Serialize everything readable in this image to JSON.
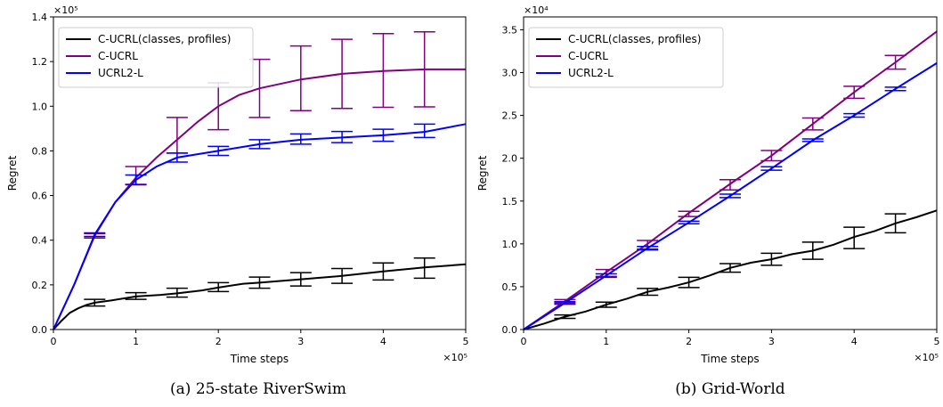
{
  "colors": {
    "c_ucrl_cp": "#000000",
    "c_ucrl": "#800080",
    "ucrl2l": "#0000ff"
  },
  "chart_data": [
    {
      "type": "line",
      "caption": "(a) 25-state RiverSwim",
      "xlabel": "Time steps",
      "ylabel": "Regret",
      "x_multiplier": "×10⁵",
      "y_multiplier": "×10⁵",
      "xlim": [
        0,
        5
      ],
      "ylim": [
        0,
        1.4
      ],
      "xticks": [
        "0",
        "1",
        "2",
        "3",
        "4",
        "5"
      ],
      "yticks": [
        "0.0",
        "0.2",
        "0.4",
        "0.6",
        "0.8",
        "1.0",
        "1.2",
        "1.4"
      ],
      "legend_position": "top-left",
      "series": [
        {
          "name": "C-UCRL(classes, profiles)",
          "color": "#000000",
          "points": [
            [
              0,
              0
            ],
            [
              0.1,
              0.04
            ],
            [
              0.2,
              0.075
            ],
            [
              0.3,
              0.095
            ],
            [
              0.4,
              0.11
            ],
            [
              0.5,
              0.12
            ],
            [
              0.7,
              0.13
            ],
            [
              1.0,
              0.148
            ],
            [
              1.3,
              0.155
            ],
            [
              1.5,
              0.162
            ],
            [
              1.8,
              0.175
            ],
            [
              2.0,
              0.188
            ],
            [
              2.3,
              0.205
            ],
            [
              2.5,
              0.21
            ],
            [
              3.0,
              0.225
            ],
            [
              3.5,
              0.24
            ],
            [
              4.0,
              0.26
            ],
            [
              4.5,
              0.278
            ],
            [
              5.0,
              0.292
            ]
          ],
          "errorbars": [
            [
              0.5,
              0.12,
              0.015
            ],
            [
              1.0,
              0.15,
              0.015
            ],
            [
              1.5,
              0.165,
              0.02
            ],
            [
              2.0,
              0.19,
              0.02
            ],
            [
              2.5,
              0.21,
              0.025
            ],
            [
              3.0,
              0.225,
              0.03
            ],
            [
              3.5,
              0.24,
              0.033
            ],
            [
              4.0,
              0.26,
              0.038
            ],
            [
              4.5,
              0.275,
              0.045
            ]
          ]
        },
        {
          "name": "C-UCRL",
          "color": "#800080",
          "points": [
            [
              0,
              0
            ],
            [
              0.25,
              0.2
            ],
            [
              0.5,
              0.42
            ],
            [
              0.75,
              0.57
            ],
            [
              1.0,
              0.68
            ],
            [
              1.25,
              0.77
            ],
            [
              1.5,
              0.85
            ],
            [
              1.75,
              0.93
            ],
            [
              2.0,
              1.0
            ],
            [
              2.25,
              1.05
            ],
            [
              2.5,
              1.08
            ],
            [
              3.0,
              1.12
            ],
            [
              3.5,
              1.145
            ],
            [
              4.0,
              1.158
            ],
            [
              4.5,
              1.165
            ],
            [
              5.0,
              1.165
            ]
          ],
          "errorbars": [
            [
              0.5,
              0.42,
              0.01
            ],
            [
              1.0,
              0.69,
              0.04
            ],
            [
              1.5,
              0.87,
              0.08
            ],
            [
              2.0,
              1.0,
              0.105
            ],
            [
              2.5,
              1.08,
              0.13
            ],
            [
              3.0,
              1.125,
              0.145
            ],
            [
              3.5,
              1.145,
              0.155
            ],
            [
              4.0,
              1.16,
              0.165
            ],
            [
              4.5,
              1.165,
              0.168
            ]
          ]
        },
        {
          "name": "UCRL2-L",
          "color": "#0000ff",
          "points": [
            [
              0,
              0
            ],
            [
              0.25,
              0.2
            ],
            [
              0.5,
              0.425
            ],
            [
              0.75,
              0.57
            ],
            [
              1.0,
              0.67
            ],
            [
              1.25,
              0.73
            ],
            [
              1.5,
              0.77
            ],
            [
              2.0,
              0.8
            ],
            [
              2.5,
              0.83
            ],
            [
              3.0,
              0.85
            ],
            [
              3.5,
              0.86
            ],
            [
              4.0,
              0.87
            ],
            [
              4.5,
              0.885
            ],
            [
              5.0,
              0.92
            ]
          ],
          "errorbars": [
            [
              0.5,
              0.425,
              0.008
            ],
            [
              1.0,
              0.67,
              0.022
            ],
            [
              1.5,
              0.77,
              0.02
            ],
            [
              2.0,
              0.8,
              0.02
            ],
            [
              2.5,
              0.83,
              0.02
            ],
            [
              3.0,
              0.853,
              0.023
            ],
            [
              3.5,
              0.862,
              0.025
            ],
            [
              4.0,
              0.87,
              0.027
            ],
            [
              4.5,
              0.89,
              0.03
            ]
          ]
        }
      ]
    },
    {
      "type": "line",
      "caption": "(b) Grid-World",
      "xlabel": "Time steps",
      "ylabel": "Regret",
      "x_multiplier": "×10⁵",
      "y_multiplier": "×10⁴",
      "xlim": [
        0,
        5
      ],
      "ylim": [
        0,
        3.65
      ],
      "xticks": [
        "0",
        "1",
        "2",
        "3",
        "4",
        "5"
      ],
      "yticks": [
        "0.0",
        "0.5",
        "1.0",
        "1.5",
        "2.0",
        "2.5",
        "3.0",
        "3.5"
      ],
      "legend_position": "top-left",
      "series": [
        {
          "name": "C-UCRL(classes, profiles)",
          "color": "#000000",
          "points": [
            [
              0,
              0
            ],
            [
              0.25,
              0.07
            ],
            [
              0.5,
              0.15
            ],
            [
              0.75,
              0.21
            ],
            [
              1.0,
              0.29
            ],
            [
              1.25,
              0.36
            ],
            [
              1.5,
              0.44
            ],
            [
              1.75,
              0.49
            ],
            [
              2.0,
              0.55
            ],
            [
              2.25,
              0.63
            ],
            [
              2.5,
              0.72
            ],
            [
              2.75,
              0.78
            ],
            [
              3.0,
              0.82
            ],
            [
              3.25,
              0.88
            ],
            [
              3.5,
              0.92
            ],
            [
              3.75,
              0.99
            ],
            [
              4.0,
              1.08
            ],
            [
              4.25,
              1.15
            ],
            [
              4.5,
              1.24
            ],
            [
              4.75,
              1.31
            ],
            [
              5.0,
              1.39
            ]
          ],
          "errorbars": [
            [
              0.5,
              0.15,
              0.02
            ],
            [
              1.0,
              0.29,
              0.03
            ],
            [
              1.5,
              0.44,
              0.04
            ],
            [
              2.0,
              0.55,
              0.06
            ],
            [
              2.5,
              0.72,
              0.05
            ],
            [
              3.0,
              0.82,
              0.07
            ],
            [
              3.5,
              0.92,
              0.1
            ],
            [
              4.0,
              1.07,
              0.125
            ],
            [
              4.5,
              1.24,
              0.11
            ]
          ]
        },
        {
          "name": "C-UCRL",
          "color": "#800080",
          "points": [
            [
              0,
              0
            ],
            [
              0.5,
              0.33
            ],
            [
              1.0,
              0.67
            ],
            [
              1.5,
              1.0
            ],
            [
              2.0,
              1.36
            ],
            [
              2.5,
              1.7
            ],
            [
              3.0,
              2.03
            ],
            [
              3.5,
              2.4
            ],
            [
              4.0,
              2.77
            ],
            [
              4.5,
              3.12
            ],
            [
              5.0,
              3.48
            ]
          ],
          "errorbars": [
            [
              0.5,
              0.33,
              0.02
            ],
            [
              1.0,
              0.66,
              0.04
            ],
            [
              1.5,
              0.99,
              0.05
            ],
            [
              2.0,
              1.35,
              0.03
            ],
            [
              2.5,
              1.69,
              0.06
            ],
            [
              3.0,
              2.03,
              0.06
            ],
            [
              3.5,
              2.4,
              0.07
            ],
            [
              4.0,
              2.77,
              0.07
            ],
            [
              4.5,
              3.12,
              0.08
            ]
          ]
        },
        {
          "name": "UCRL2-L",
          "color": "#0000ff",
          "points": [
            [
              0,
              0
            ],
            [
              0.5,
              0.31
            ],
            [
              1.0,
              0.63
            ],
            [
              1.5,
              0.95
            ],
            [
              2.0,
              1.25
            ],
            [
              2.5,
              1.56
            ],
            [
              3.0,
              1.88
            ],
            [
              3.5,
              2.21
            ],
            [
              4.0,
              2.5
            ],
            [
              4.5,
              2.81
            ],
            [
              5.0,
              3.11
            ]
          ],
          "errorbars": [
            [
              0.5,
              0.31,
              0.015
            ],
            [
              1.0,
              0.63,
              0.02
            ],
            [
              1.5,
              0.95,
              0.02
            ],
            [
              2.0,
              1.25,
              0.015
            ],
            [
              2.5,
              1.56,
              0.02
            ],
            [
              3.0,
              1.88,
              0.02
            ],
            [
              3.5,
              2.21,
              0.015
            ],
            [
              4.0,
              2.5,
              0.02
            ],
            [
              4.5,
              2.81,
              0.02
            ]
          ]
        }
      ]
    }
  ]
}
